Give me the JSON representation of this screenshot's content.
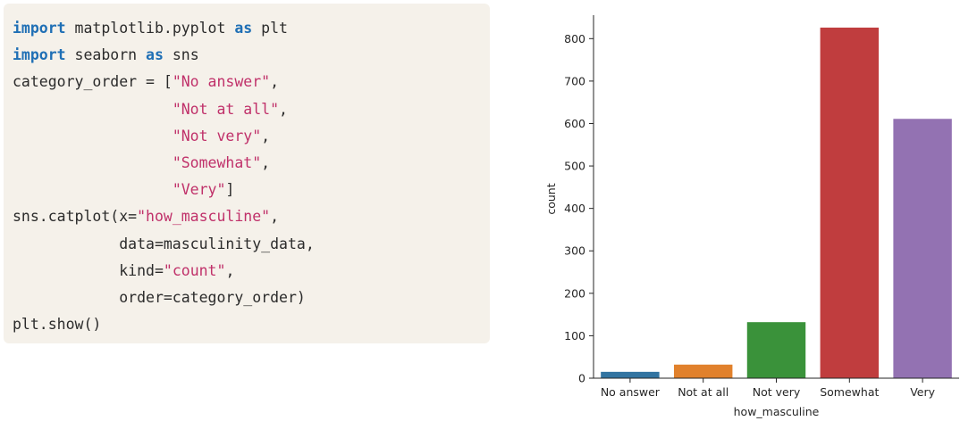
{
  "code": {
    "lines": [
      [
        {
          "t": "kw",
          "v": "import"
        },
        {
          "t": "plain",
          "v": " matplotlib.pyplot "
        },
        {
          "t": "kw",
          "v": "as"
        },
        {
          "t": "plain",
          "v": " plt"
        }
      ],
      [
        {
          "t": "kw",
          "v": "import"
        },
        {
          "t": "plain",
          "v": " seaborn "
        },
        {
          "t": "kw",
          "v": "as"
        },
        {
          "t": "plain",
          "v": " sns"
        }
      ],
      [
        {
          "t": "plain",
          "v": "category_order = ["
        },
        {
          "t": "str",
          "v": "\"No answer\""
        },
        {
          "t": "plain",
          "v": ","
        }
      ],
      [
        {
          "t": "plain",
          "v": "                  "
        },
        {
          "t": "str",
          "v": "\"Not at all\""
        },
        {
          "t": "plain",
          "v": ","
        }
      ],
      [
        {
          "t": "plain",
          "v": "                  "
        },
        {
          "t": "str",
          "v": "\"Not very\""
        },
        {
          "t": "plain",
          "v": ","
        }
      ],
      [
        {
          "t": "plain",
          "v": "                  "
        },
        {
          "t": "str",
          "v": "\"Somewhat\""
        },
        {
          "t": "plain",
          "v": ","
        }
      ],
      [
        {
          "t": "plain",
          "v": "                  "
        },
        {
          "t": "str",
          "v": "\"Very\""
        },
        {
          "t": "plain",
          "v": "]"
        }
      ],
      [
        {
          "t": "plain",
          "v": "sns.catplot(x="
        },
        {
          "t": "str",
          "v": "\"how_masculine\""
        },
        {
          "t": "plain",
          "v": ","
        }
      ],
      [
        {
          "t": "plain",
          "v": "            data=masculinity_data,"
        }
      ],
      [
        {
          "t": "plain",
          "v": "            kind="
        },
        {
          "t": "str",
          "v": "\"count\""
        },
        {
          "t": "plain",
          "v": ","
        }
      ],
      [
        {
          "t": "plain",
          "v": "            order=category_order)"
        }
      ],
      [
        {
          "t": "plain",
          "v": "plt.show()"
        }
      ]
    ],
    "colors": {
      "keyword": "#1f6fb5",
      "string": "#c0316a",
      "plain": "#2b2b2b",
      "background": "#f5f1ea"
    }
  },
  "chart_data": {
    "type": "bar",
    "categories": [
      "No answer",
      "Not at all",
      "Not very",
      "Somewhat",
      "Very"
    ],
    "values": [
      15,
      32,
      132,
      826,
      611
    ],
    "colors": [
      "#3274a1",
      "#e1812c",
      "#3a923a",
      "#c03d3e",
      "#9372b2"
    ],
    "xlabel": "how_masculine",
    "ylabel": "count",
    "ylim": [
      0,
      870
    ],
    "yticks": [
      0,
      100,
      200,
      300,
      400,
      500,
      600,
      700,
      800
    ],
    "grid": false,
    "legend": "none"
  }
}
